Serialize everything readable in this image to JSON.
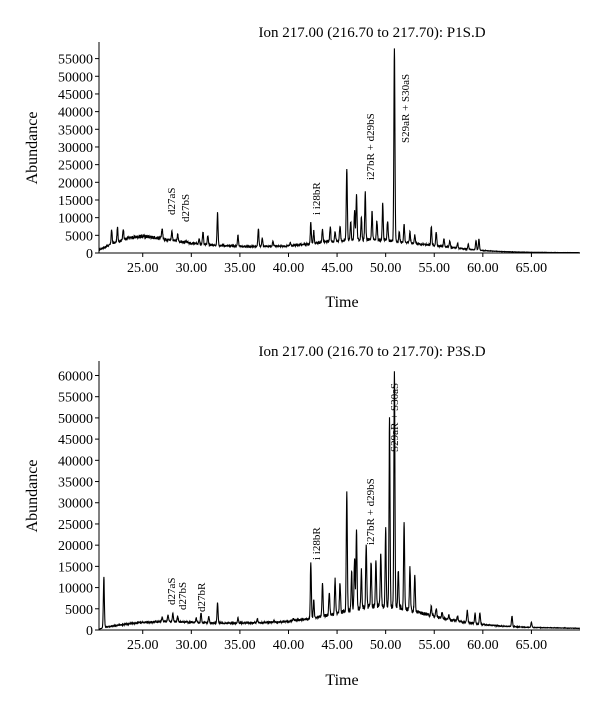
{
  "chart_data": [
    {
      "type": "line",
      "title": "Ion 217.00 (216.70 to 217.70): P1S.D",
      "xlabel": "Time",
      "ylabel": "Abundance",
      "xlim": [
        20.5,
        70
      ],
      "ylim": [
        0,
        58000
      ],
      "xticks": [
        25,
        30,
        35,
        40,
        45,
        50,
        55,
        60,
        65
      ],
      "xtick_labels": [
        "25.00",
        "30.00",
        "35.00",
        "40.00",
        "45.00",
        "50.00",
        "55.00",
        "60.00",
        "65.00"
      ],
      "yticks": [
        0,
        5000,
        10000,
        15000,
        20000,
        25000,
        30000,
        35000,
        40000,
        45000,
        50000,
        55000
      ],
      "ytick_labels": [
        "0",
        "5000",
        "10000",
        "15000",
        "20000",
        "25000",
        "30000",
        "35000",
        "40000",
        "45000",
        "50000",
        "55000"
      ],
      "baseline": [
        [
          20.5,
          900
        ],
        [
          22,
          2800
        ],
        [
          23.5,
          4200
        ],
        [
          25,
          4800
        ],
        [
          26.5,
          4300
        ],
        [
          28,
          3600
        ],
        [
          30,
          2700
        ],
        [
          33,
          2100
        ],
        [
          36,
          1800
        ],
        [
          40,
          2000
        ],
        [
          42,
          2500
        ],
        [
          44,
          3200
        ],
        [
          46,
          3600
        ],
        [
          48,
          3800
        ],
        [
          50,
          3600
        ],
        [
          52,
          3000
        ],
        [
          54,
          2400
        ],
        [
          56,
          1800
        ],
        [
          58,
          1200
        ],
        [
          60,
          700
        ],
        [
          62,
          400
        ],
        [
          65,
          200
        ],
        [
          70,
          100
        ]
      ],
      "peaks": [
        [
          21.8,
          6500
        ],
        [
          22.4,
          7200
        ],
        [
          23.0,
          6800
        ],
        [
          27.0,
          7000
        ],
        [
          28.0,
          6200
        ],
        [
          28.6,
          5200
        ],
        [
          29.5,
          3600
        ],
        [
          30.8,
          4200
        ],
        [
          31.2,
          6000
        ],
        [
          31.7,
          4800
        ],
        [
          32.7,
          11500
        ],
        [
          34.8,
          5200
        ],
        [
          36.9,
          7000
        ],
        [
          37.3,
          4200
        ],
        [
          38.4,
          3300
        ],
        [
          40.2,
          3000
        ],
        [
          42.3,
          8500
        ],
        [
          42.6,
          6300
        ],
        [
          43.5,
          6700
        ],
        [
          44.3,
          7400
        ],
        [
          44.8,
          6100
        ],
        [
          45.3,
          7800
        ],
        [
          46.0,
          24000
        ],
        [
          46.4,
          9000
        ],
        [
          46.8,
          12000
        ],
        [
          47.0,
          16500
        ],
        [
          47.5,
          10000
        ],
        [
          47.9,
          17500
        ],
        [
          48.6,
          12000
        ],
        [
          49.1,
          9000
        ],
        [
          49.7,
          14000
        ],
        [
          50.2,
          9000
        ],
        [
          50.9,
          58000
        ],
        [
          51.4,
          6000
        ],
        [
          51.9,
          8000
        ],
        [
          52.5,
          6000
        ],
        [
          53.0,
          5000
        ],
        [
          54.7,
          7500
        ],
        [
          55.2,
          6000
        ],
        [
          56.0,
          4000
        ],
        [
          56.6,
          3500
        ],
        [
          57.4,
          2800
        ],
        [
          58.5,
          2500
        ],
        [
          59.3,
          3500
        ],
        [
          59.6,
          4000
        ]
      ],
      "annotations": [
        "d27aS",
        "d27bS",
        "i i28bR",
        "i27bR + d29bS",
        "S29aR + S30aS"
      ]
    },
    {
      "type": "line",
      "title": "Ion 217.00 (216.70 to 217.70): P3S.D",
      "xlabel": "Time",
      "ylabel": "Abundance",
      "xlim": [
        20.5,
        70
      ],
      "ylim": [
        0,
        62000
      ],
      "xticks": [
        25,
        30,
        35,
        40,
        45,
        50,
        55,
        60,
        65
      ],
      "xtick_labels": [
        "25.00",
        "30.00",
        "35.00",
        "40.00",
        "45.00",
        "50.00",
        "55.00",
        "60.00",
        "65.00"
      ],
      "yticks": [
        0,
        5000,
        10000,
        15000,
        20000,
        25000,
        30000,
        35000,
        40000,
        45000,
        50000,
        55000,
        60000
      ],
      "ytick_labels": [
        "0",
        "5000",
        "10000",
        "15000",
        "20000",
        "25000",
        "30000",
        "35000",
        "40000",
        "45000",
        "50000",
        "55000",
        "60000"
      ],
      "baseline": [
        [
          20.5,
          200
        ],
        [
          21.2,
          700
        ],
        [
          23,
          1300
        ],
        [
          25,
          1800
        ],
        [
          27,
          2000
        ],
        [
          29,
          1900
        ],
        [
          31,
          1700
        ],
        [
          34,
          1600
        ],
        [
          37,
          1700
        ],
        [
          40,
          2000
        ],
        [
          42,
          2600
        ],
        [
          44,
          3500
        ],
        [
          46,
          4500
        ],
        [
          48,
          5500
        ],
        [
          50,
          5800
        ],
        [
          52,
          5000
        ],
        [
          54,
          3800
        ],
        [
          56,
          2700
        ],
        [
          58,
          1900
        ],
        [
          60,
          1300
        ],
        [
          62,
          900
        ],
        [
          65,
          600
        ],
        [
          70,
          400
        ]
      ],
      "peaks": [
        [
          21.0,
          12500
        ],
        [
          27.0,
          3000
        ],
        [
          27.6,
          3500
        ],
        [
          28.1,
          4000
        ],
        [
          28.6,
          3200
        ],
        [
          30.5,
          2800
        ],
        [
          31.0,
          4000
        ],
        [
          31.8,
          3200
        ],
        [
          32.7,
          6500
        ],
        [
          34.8,
          2900
        ],
        [
          36.8,
          2600
        ],
        [
          38.5,
          2200
        ],
        [
          40.5,
          2600
        ],
        [
          42.3,
          16000
        ],
        [
          42.6,
          7000
        ],
        [
          43.5,
          11000
        ],
        [
          44.2,
          9000
        ],
        [
          44.8,
          12000
        ],
        [
          45.3,
          11000
        ],
        [
          46.0,
          32500
        ],
        [
          46.5,
          14000
        ],
        [
          46.8,
          17000
        ],
        [
          47.0,
          23500
        ],
        [
          47.5,
          14000
        ],
        [
          48.0,
          20000
        ],
        [
          48.5,
          16000
        ],
        [
          49.0,
          17000
        ],
        [
          49.5,
          18000
        ],
        [
          50.0,
          24000
        ],
        [
          50.4,
          50000
        ],
        [
          50.9,
          61000
        ],
        [
          51.3,
          14000
        ],
        [
          51.9,
          25000
        ],
        [
          52.5,
          15000
        ],
        [
          53.0,
          13000
        ],
        [
          54.7,
          5500
        ],
        [
          55.2,
          5000
        ],
        [
          55.8,
          4200
        ],
        [
          56.5,
          3500
        ],
        [
          57.4,
          3300
        ],
        [
          58.4,
          4600
        ],
        [
          59.2,
          4000
        ],
        [
          59.7,
          4000
        ],
        [
          63.0,
          3300
        ],
        [
          65.0,
          1800
        ]
      ],
      "annotations": [
        "d27aS",
        "d27bS",
        "d27bR",
        "i i28bR",
        "i27bR + d29bS",
        "S29aR + S30aS"
      ]
    }
  ]
}
